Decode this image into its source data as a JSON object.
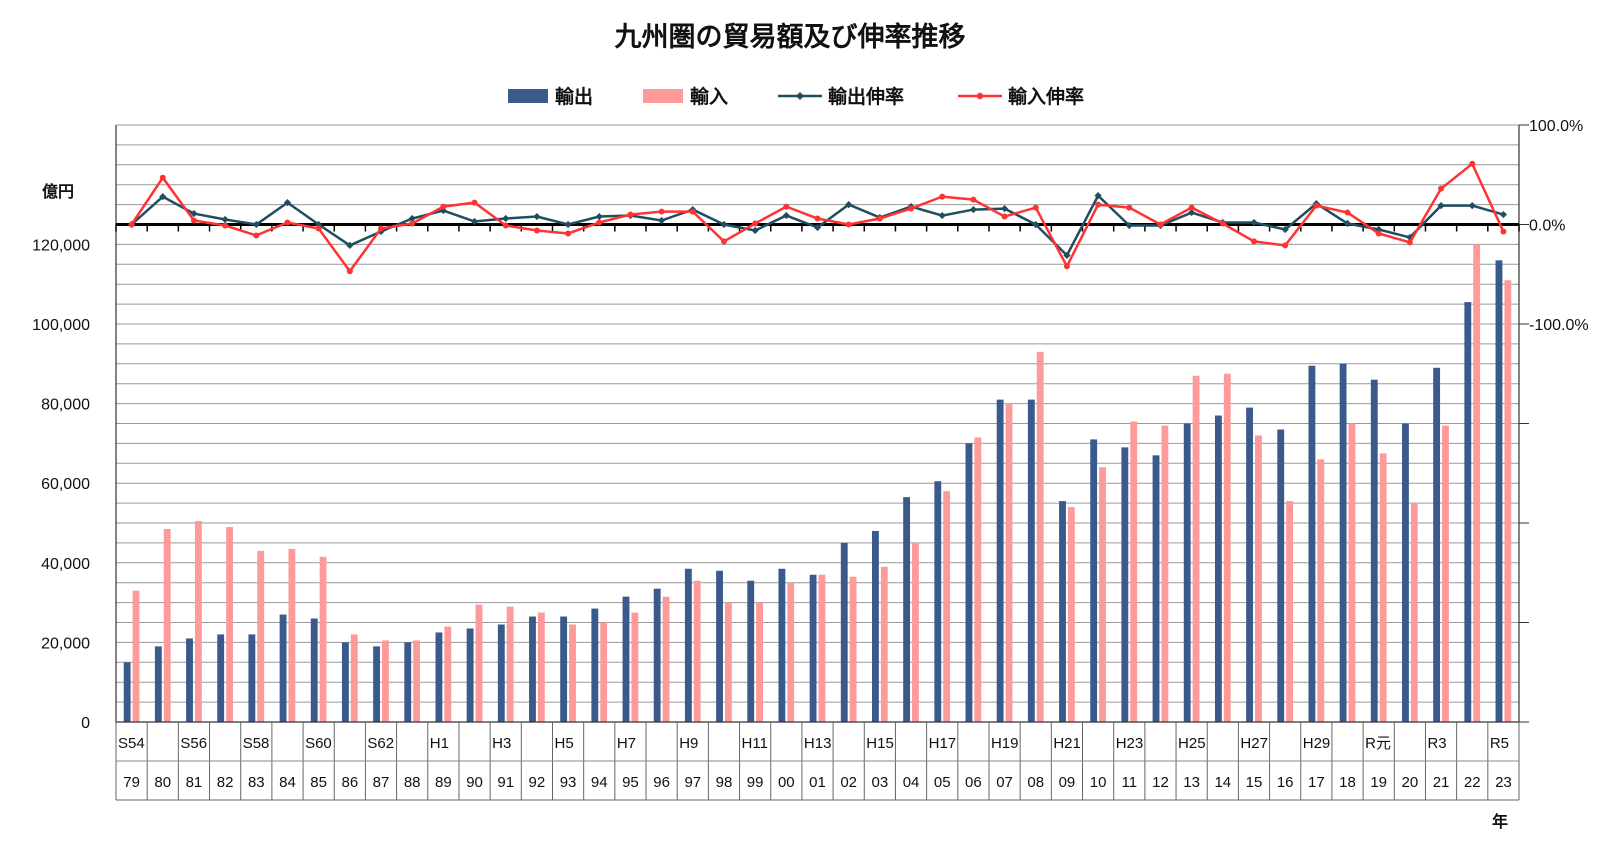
{
  "chart_data": {
    "type": "bar",
    "title": "九州圏の貿易額及び伸率推移",
    "y_unit": "億円",
    "x_unit": "年",
    "ylim_left": [
      0,
      150000
    ],
    "left_ticks": [
      0,
      20000,
      40000,
      60000,
      80000,
      100000,
      120000
    ],
    "ylim_right": [
      -500,
      100
    ],
    "right_ticks": [
      100,
      0,
      -100
    ],
    "era_labels": [
      "S54",
      "",
      "S56",
      "",
      "S58",
      "",
      "S60",
      "",
      "S62",
      "",
      "H1",
      "",
      "H3",
      "",
      "H5",
      "",
      "H7",
      "",
      "H9",
      "",
      "H11",
      "",
      "H13",
      "",
      "H15",
      "",
      "H17",
      "",
      "H19",
      "",
      "H21",
      "",
      "H23",
      "",
      "H25",
      "",
      "H27",
      "",
      "H29",
      "",
      "R元",
      "",
      "R3",
      "",
      "R5"
    ],
    "categories": [
      "79",
      "80",
      "81",
      "82",
      "83",
      "84",
      "85",
      "86",
      "87",
      "88",
      "89",
      "90",
      "91",
      "92",
      "93",
      "94",
      "95",
      "96",
      "97",
      "98",
      "99",
      "00",
      "01",
      "02",
      "03",
      "04",
      "05",
      "06",
      "07",
      "08",
      "09",
      "10",
      "11",
      "12",
      "13",
      "14",
      "15",
      "16",
      "17",
      "18",
      "19",
      "20",
      "21",
      "22",
      "23"
    ],
    "series": [
      {
        "name": "輸出",
        "kind": "bar",
        "axis": "left",
        "color": "#3b5a8c",
        "values": [
          15000,
          19000,
          21000,
          22000,
          22000,
          27000,
          26000,
          20000,
          19000,
          20000,
          22500,
          23500,
          24500,
          26500,
          26500,
          28500,
          31500,
          33500,
          38500,
          38000,
          35500,
          38500,
          37000,
          45000,
          48000,
          56500,
          60500,
          70000,
          81000,
          81000,
          55500,
          71000,
          69000,
          67000,
          75000,
          77000,
          79000,
          73500,
          89500,
          90000,
          86000,
          75000,
          89000,
          105500,
          116000
        ]
      },
      {
        "name": "輸入",
        "kind": "bar",
        "axis": "left",
        "color": "#ff9a9a",
        "values": [
          33000,
          48500,
          50500,
          49000,
          43000,
          43500,
          41500,
          22000,
          20500,
          20500,
          24000,
          29500,
          29000,
          27500,
          24500,
          25000,
          27500,
          31500,
          35500,
          30000,
          30000,
          35000,
          37000,
          36500,
          39000,
          45000,
          58000,
          71500,
          80000,
          93000,
          54000,
          64000,
          75500,
          74500,
          87000,
          87500,
          72000,
          55500,
          66000,
          75000,
          67500,
          55000,
          74500,
          120000,
          111000
        ]
      },
      {
        "name": "輸出伸率",
        "kind": "line",
        "axis": "right",
        "color": "#1f4e60",
        "values": [
          0,
          28,
          11,
          5,
          0,
          22,
          0,
          -21,
          -7,
          6,
          14,
          3,
          6,
          8,
          0,
          8,
          9,
          4,
          15,
          0,
          -6,
          9,
          -3,
          20,
          7,
          18,
          9,
          15,
          16,
          0,
          -31,
          29,
          -1,
          -1,
          12,
          2,
          2,
          -5,
          21,
          1,
          -5,
          -13,
          19,
          19,
          10
        ]
      },
      {
        "name": "輸入伸率",
        "kind": "line",
        "axis": "right",
        "color": "#ff3333",
        "values": [
          0,
          47,
          4,
          -1,
          -11,
          2,
          -4,
          -47,
          -4,
          1,
          18,
          22,
          -1,
          -6,
          -9,
          2,
          10,
          13,
          13,
          -17,
          1,
          18,
          6,
          0,
          6,
          16,
          28,
          25,
          8,
          17,
          -42,
          20,
          17,
          0,
          17,
          1,
          -17,
          -21,
          19,
          12,
          -9,
          -18,
          36,
          61,
          -7
        ]
      }
    ],
    "legend_position": "top",
    "grid": true
  }
}
